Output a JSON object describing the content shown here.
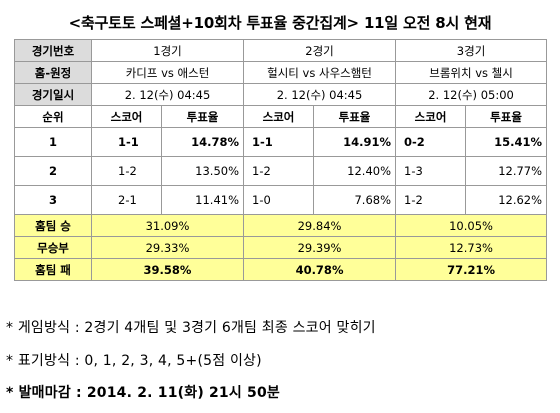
{
  "title": "<축구토토 스페셜+10회차 투표율 중간집계> 11일 오전 8시 현재",
  "table": {
    "row_labels": {
      "game_no": "경기번호",
      "home_away": "홈-원정",
      "date": "경기일시",
      "rank": "순위",
      "home_win": "홈팀 승",
      "draw": "무승부",
      "home_loss": "홈팀 패"
    },
    "sub_headers": {
      "score": "스코어",
      "rate": "투표율"
    },
    "games": [
      {
        "no": "1경기",
        "matchup": "카디프 vs 애스턴",
        "datetime": "2. 12(수) 04:45",
        "ranks": [
          {
            "score": "1-1",
            "rate": "14.78%"
          },
          {
            "score": "1-2",
            "rate": "13.50%"
          },
          {
            "score": "2-1",
            "rate": "11.41%"
          }
        ],
        "home_win": "31.09%",
        "draw": "29.33%",
        "home_loss": "39.58%"
      },
      {
        "no": "2경기",
        "matchup": "헐시티 vs 사우스햄턴",
        "datetime": "2. 12(수) 04:45",
        "ranks": [
          {
            "score": "1-1",
            "rate": "14.91%"
          },
          {
            "score": "1-2",
            "rate": "12.40%"
          },
          {
            "score": "1-0",
            "rate": "7.68%"
          }
        ],
        "home_win": "29.84%",
        "draw": "29.39%",
        "home_loss": "40.78%"
      },
      {
        "no": "3경기",
        "matchup": "브롬위치 vs 첼시",
        "datetime": "2. 12(수) 05:00",
        "ranks": [
          {
            "score": "0-2",
            "rate": "15.41%"
          },
          {
            "score": "1-3",
            "rate": "12.77%"
          },
          {
            "score": "1-2",
            "rate": "12.62%"
          }
        ],
        "home_win": "10.05%",
        "draw": "12.73%",
        "home_loss": "77.21%"
      }
    ],
    "rank_numbers": [
      "1",
      "2",
      "3"
    ]
  },
  "notes": [
    "* 게임방식 : 2경기 4개팀 및 3경기 6개팀 최종 스코어 맞히기",
    "* 표기방식 : 0, 1, 2, 3, 4, 5+(5점 이상)",
    "* 발매마감 : 2014. 2. 11(화) 21시 50분"
  ]
}
